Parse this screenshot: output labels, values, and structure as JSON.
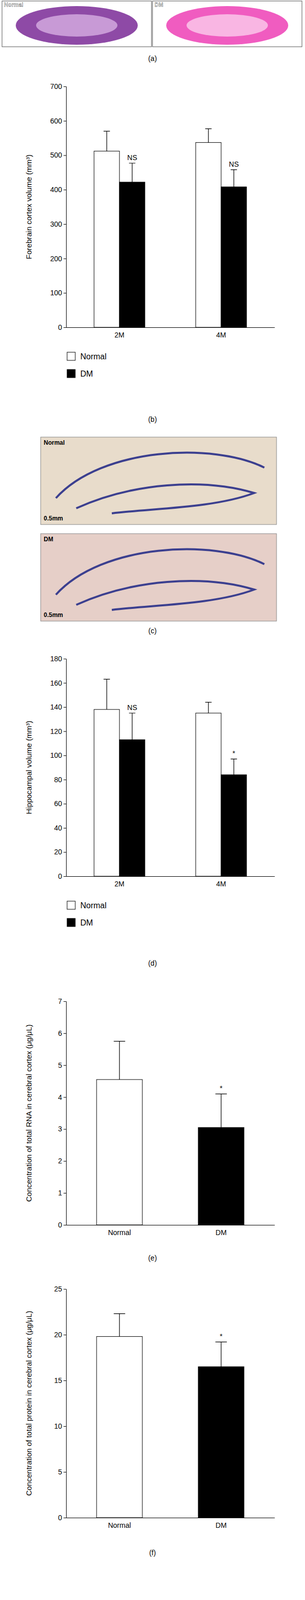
{
  "chart_data": [
    {
      "type": "bar",
      "caption": "(b)",
      "y_label": "Forebrain cortex volume (mm³)",
      "categories": [
        "2M",
        "4M"
      ],
      "series": [
        {
          "name": "Normal",
          "color": "#ffffff",
          "values": [
            512,
            537
          ],
          "errors": [
            58,
            40
          ],
          "annotations": [
            null,
            null
          ]
        },
        {
          "name": "DM",
          "color": "#000000",
          "values": [
            422,
            408
          ],
          "errors": [
            55,
            50
          ],
          "annotations": [
            "NS",
            "NS"
          ]
        }
      ],
      "ylim": [
        0,
        700
      ],
      "yticks": [
        0,
        100,
        200,
        300,
        400,
        500,
        600,
        700
      ],
      "legend": "bottom-left"
    },
    {
      "type": "bar",
      "caption": "(d)",
      "y_label": "Hippocampal volume (mm³)",
      "categories": [
        "2M",
        "4M"
      ],
      "series": [
        {
          "name": "Normal",
          "color": "#ffffff",
          "values": [
            138,
            135
          ],
          "errors": [
            25,
            9
          ],
          "annotations": [
            null,
            null
          ]
        },
        {
          "name": "DM",
          "color": "#000000",
          "values": [
            113,
            84
          ],
          "errors": [
            22,
            13
          ],
          "annotations": [
            "NS",
            "*"
          ]
        }
      ],
      "ylim": [
        0,
        180
      ],
      "yticks": [
        0,
        20,
        40,
        60,
        80,
        100,
        120,
        140,
        160,
        180
      ],
      "legend": "bottom-left"
    },
    {
      "type": "bar",
      "caption": "(e)",
      "y_label": "Concentration of total RNA in cerebral cortex (μg/μL)",
      "categories": [
        "Normal",
        "DM"
      ],
      "values": [
        4.55,
        3.05
      ],
      "errors": [
        1.2,
        1.05
      ],
      "colors": [
        "#ffffff",
        "#000000"
      ],
      "annotations": [
        null,
        "*"
      ],
      "ylim": [
        0,
        7
      ],
      "yticks": [
        0,
        1,
        2,
        3,
        4,
        5,
        6,
        7
      ]
    },
    {
      "type": "bar",
      "caption": "(f)",
      "y_label": "Concentration of total protein in cerebral cortex (μg/μL)",
      "categories": [
        "Normal",
        "DM"
      ],
      "values": [
        19.8,
        16.5
      ],
      "errors": [
        2.5,
        2.7
      ],
      "colors": [
        "#ffffff",
        "#000000"
      ],
      "annotations": [
        null,
        "*"
      ],
      "ylim": [
        0,
        25
      ],
      "yticks": [
        0,
        5,
        10,
        15,
        20,
        25
      ]
    }
  ],
  "images": [
    {
      "caption": "(a)",
      "labels": [
        "Normal",
        "DM"
      ]
    },
    {
      "caption": "(c)",
      "labels": [
        "Normal",
        "DM"
      ],
      "scale_bar": "0.5mm"
    }
  ]
}
